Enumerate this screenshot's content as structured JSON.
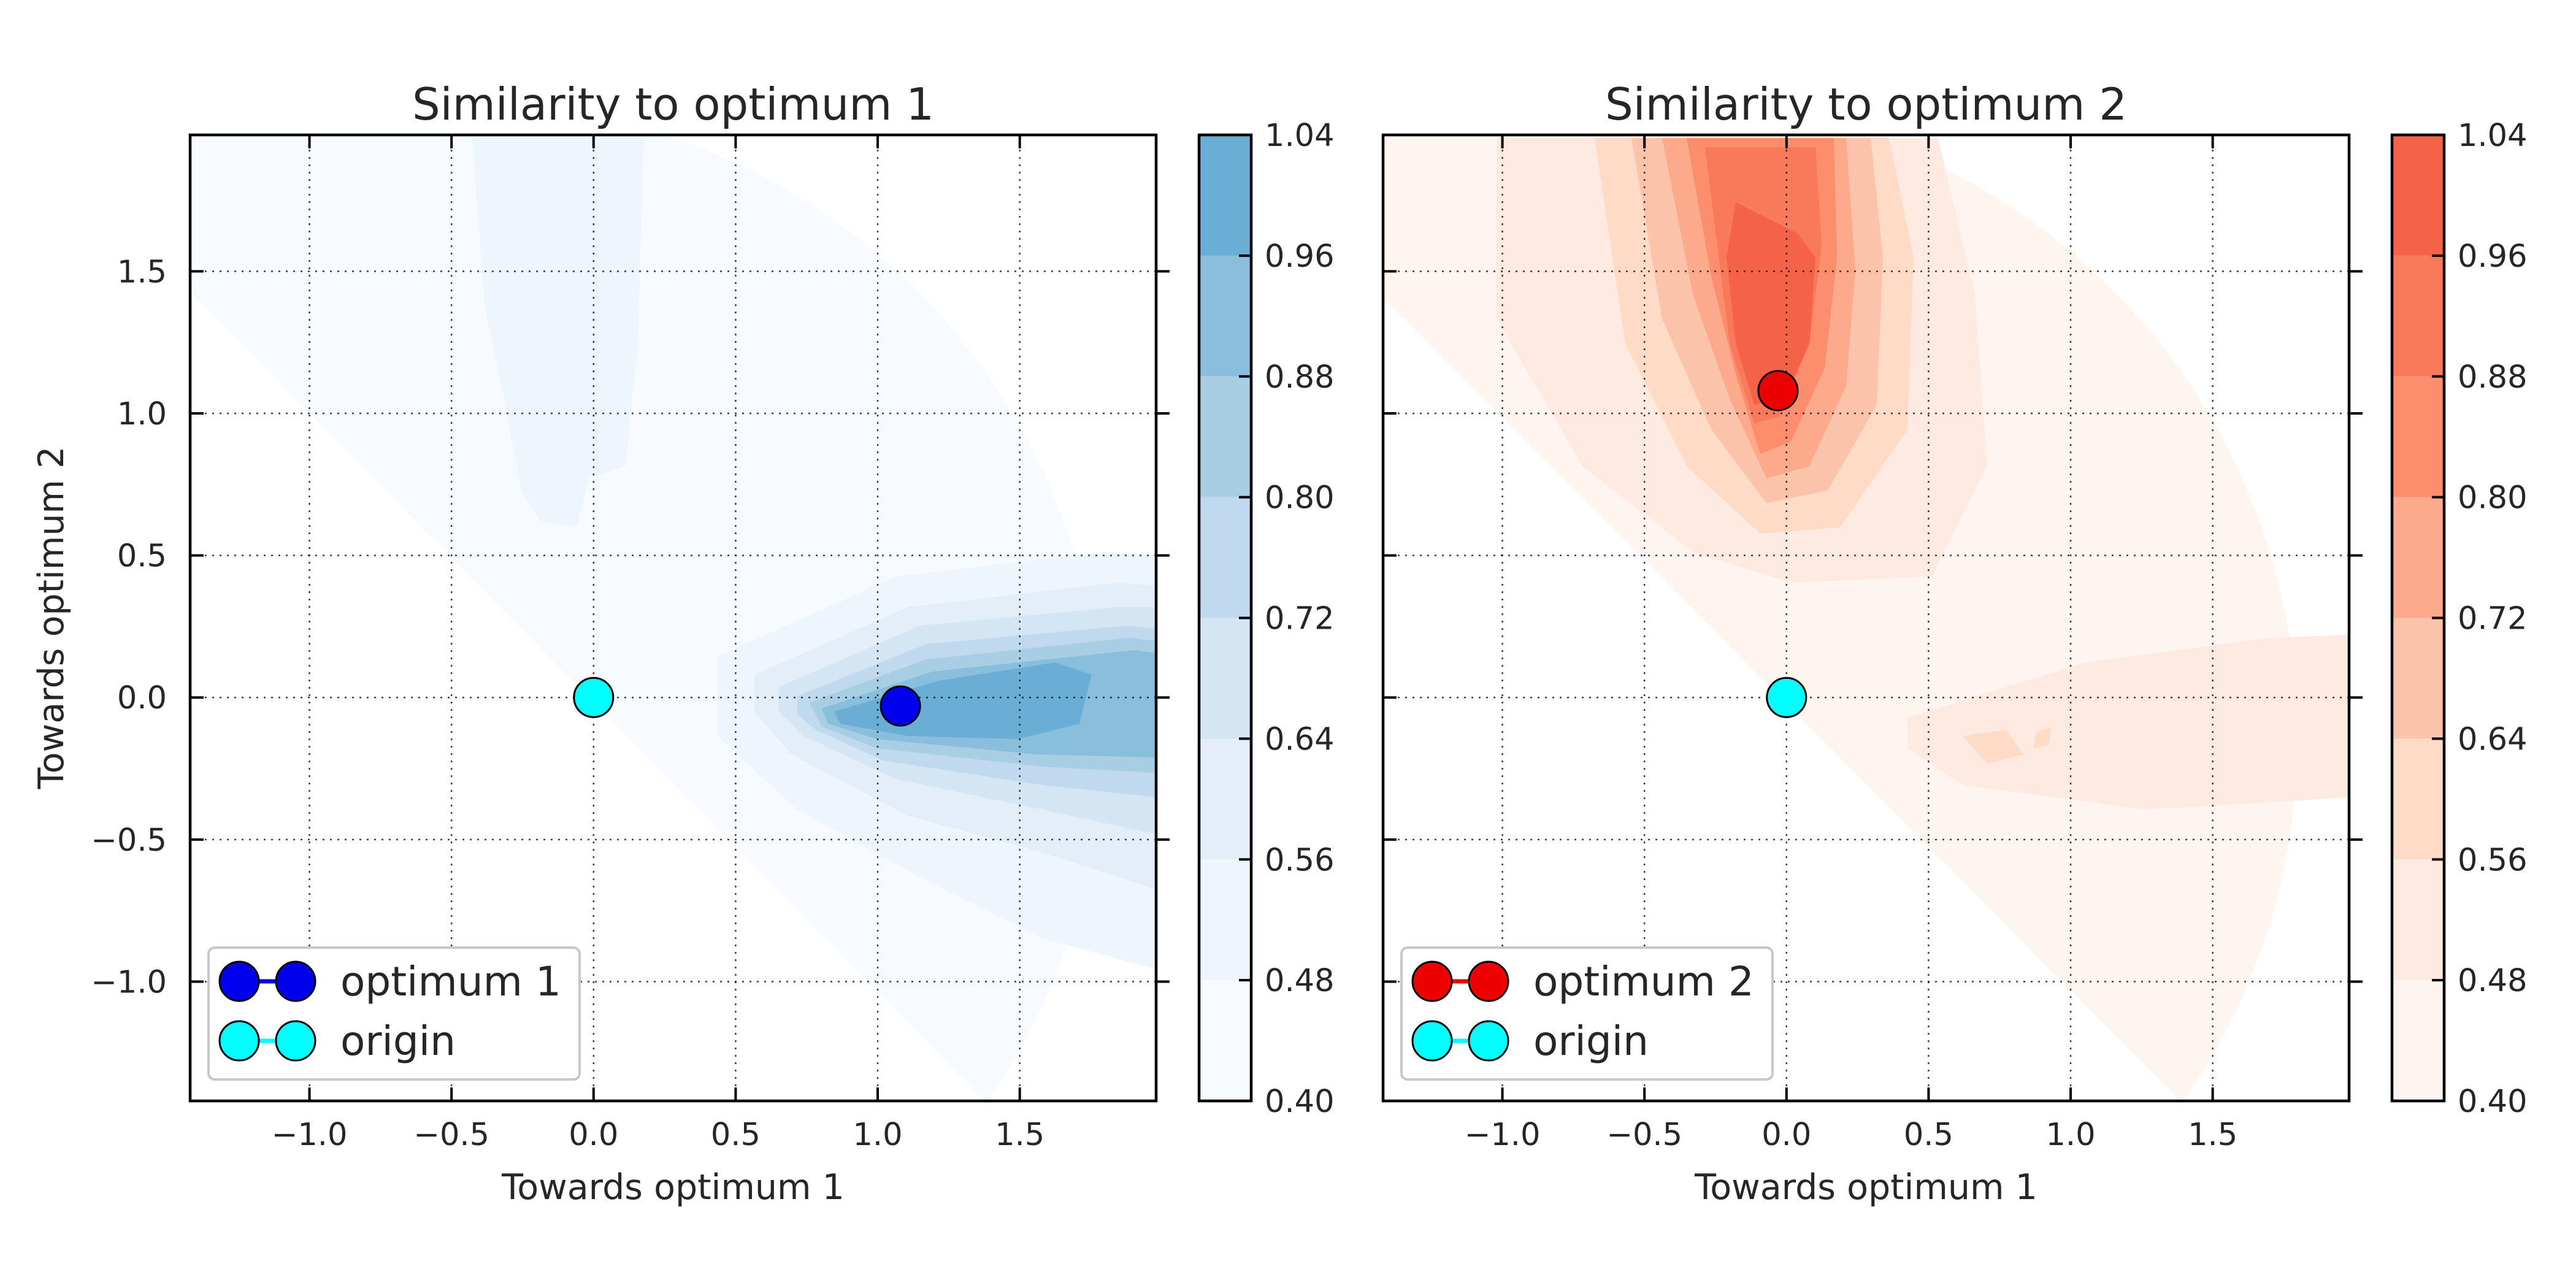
{
  "chart_data": [
    {
      "type": "contour",
      "title": "Similarity to optimum 1",
      "xlabel": "Towards optimum 1",
      "ylabel": "Towards optimum 2",
      "xlim": [
        -1.42,
        1.98
      ],
      "ylim": [
        -1.42,
        1.98
      ],
      "xticks": [
        "−1.0",
        "−0.5",
        "0.0",
        "0.5",
        "1.0",
        "1.5"
      ],
      "xtick_values": [
        -1.0,
        -0.5,
        0.0,
        0.5,
        1.0,
        1.5
      ],
      "yticks": [
        "−1.0",
        "−0.5",
        "0.0",
        "0.5",
        "1.0",
        "1.5"
      ],
      "ytick_values": [
        -1.0,
        -0.5,
        0.0,
        0.5,
        1.0,
        1.5
      ],
      "grid": true,
      "colormap": "Blues",
      "colorbar": {
        "levels": [
          0.4,
          0.48,
          0.56,
          0.64,
          0.72,
          0.8,
          0.88,
          0.96,
          1.04
        ],
        "labels": [
          "0.40",
          "0.48",
          "0.56",
          "0.64",
          "0.72",
          "0.80",
          "0.88",
          "0.96",
          "1.04"
        ],
        "colors": [
          "#f7fbff",
          "#eef5fc",
          "#e3eef9",
          "#d4e5f4",
          "#c1d9ef",
          "#a8cee4",
          "#89bedc",
          "#6aaed6"
        ]
      },
      "points": [
        {
          "name": "optimum 1",
          "x": 1.08,
          "y": -0.03,
          "color": "#0000ee"
        },
        {
          "name": "origin",
          "x": 0.0,
          "y": 0.0,
          "color": "#00ffff"
        }
      ],
      "legend": {
        "placement": "lower-left",
        "entries": [
          {
            "label": "optimum 1",
            "color": "#0000ee"
          },
          {
            "label": "origin",
            "color": "#00ffff"
          }
        ]
      }
    },
    {
      "type": "contour",
      "title": "Similarity to optimum 2",
      "xlabel": "Towards optimum 1",
      "ylabel": "",
      "xlim": [
        -1.42,
        1.98
      ],
      "ylim": [
        -1.42,
        1.98
      ],
      "xticks": [
        "−1.0",
        "−0.5",
        "0.0",
        "0.5",
        "1.0",
        "1.5"
      ],
      "xtick_values": [
        -1.0,
        -0.5,
        0.0,
        0.5,
        1.0,
        1.5
      ],
      "yticks": [],
      "ytick_values": [
        -1.0,
        -0.5,
        0.0,
        0.5,
        1.0,
        1.5
      ],
      "grid": true,
      "colormap": "Reds",
      "colorbar": {
        "levels": [
          0.4,
          0.48,
          0.56,
          0.64,
          0.72,
          0.8,
          0.88,
          0.96,
          1.04
        ],
        "labels": [
          "0.40",
          "0.48",
          "0.56",
          "0.64",
          "0.72",
          "0.80",
          "0.88",
          "0.96",
          "1.04"
        ],
        "colors": [
          "#fff5f0",
          "#feeae0",
          "#fddbc7",
          "#fcc3ab",
          "#fca98c",
          "#fc8d6d",
          "#f87a5a",
          "#f46248"
        ]
      },
      "points": [
        {
          "name": "optimum 2",
          "x": -0.03,
          "y": 1.08,
          "color": "#ee0000"
        },
        {
          "name": "origin",
          "x": 0.0,
          "y": 0.0,
          "color": "#00ffff"
        }
      ],
      "legend": {
        "placement": "lower-left",
        "entries": [
          {
            "label": "optimum 2",
            "color": "#ee0000"
          },
          {
            "label": "origin",
            "color": "#00ffff"
          }
        ]
      }
    }
  ]
}
